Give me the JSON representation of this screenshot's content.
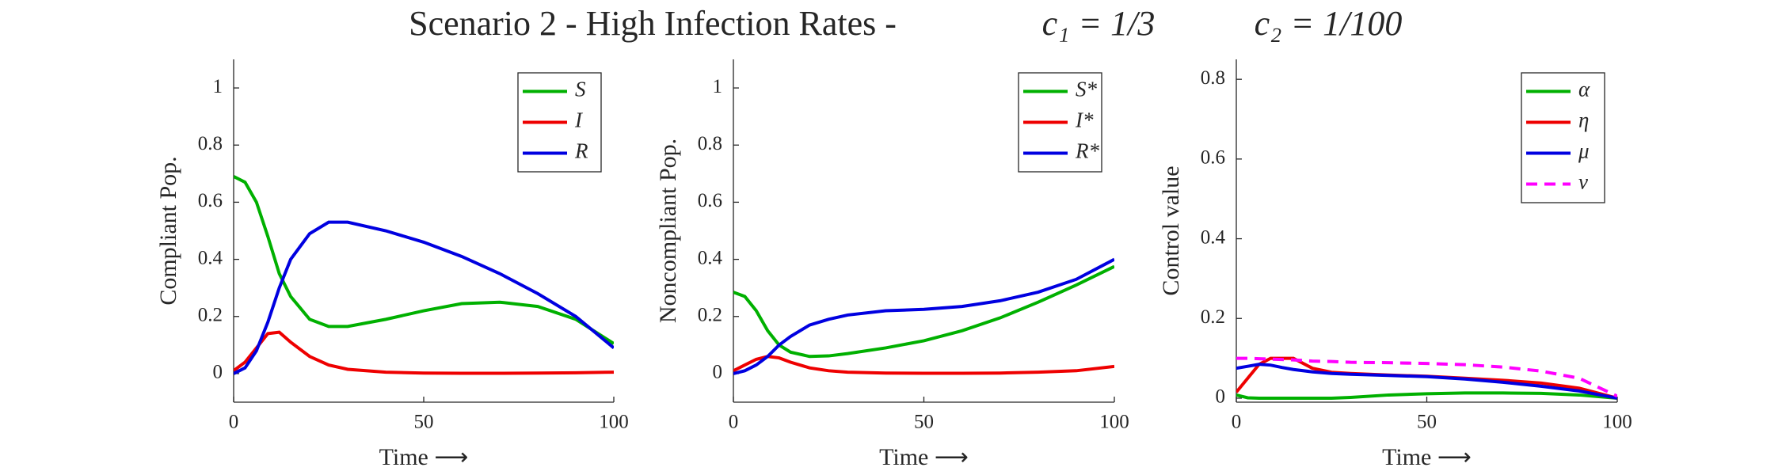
{
  "title": "Scenario 2 - High Infection Rates -",
  "annotations": [
    "c₁ = 1/3",
    "c₂ = 1/100"
  ],
  "chart_data": [
    {
      "type": "line",
      "ylabel": "Compliant Pop.",
      "xlabel": "Time ⟶",
      "x": [
        0,
        3,
        6,
        9,
        12,
        15,
        20,
        25,
        30,
        40,
        50,
        60,
        70,
        80,
        90,
        100
      ],
      "xlim": [
        0,
        100
      ],
      "xticks": [
        0,
        50,
        100
      ],
      "ylim": [
        -0.1,
        1.1
      ],
      "yticks": [
        0,
        0.2,
        0.4,
        0.6,
        0.8,
        1
      ],
      "legend": "upper right",
      "series": [
        {
          "name": "S",
          "color": "#00b000",
          "values": [
            0.69,
            0.67,
            0.6,
            0.48,
            0.35,
            0.27,
            0.19,
            0.165,
            0.165,
            0.19,
            0.22,
            0.245,
            0.25,
            0.235,
            0.19,
            0.105
          ]
        },
        {
          "name": "I",
          "color": "#ee0000",
          "values": [
            0.01,
            0.04,
            0.09,
            0.14,
            0.145,
            0.11,
            0.06,
            0.03,
            0.015,
            0.005,
            0.002,
            0.001,
            0.001,
            0.002,
            0.003,
            0.005
          ]
        },
        {
          "name": "R",
          "color": "#0000e0",
          "values": [
            0,
            0.02,
            0.08,
            0.18,
            0.3,
            0.4,
            0.49,
            0.53,
            0.53,
            0.5,
            0.46,
            0.41,
            0.35,
            0.28,
            0.2,
            0.09
          ]
        }
      ]
    },
    {
      "type": "line",
      "ylabel": "Noncompliant Pop.",
      "xlabel": "Time ⟶",
      "x": [
        0,
        3,
        6,
        9,
        12,
        15,
        20,
        25,
        30,
        40,
        50,
        60,
        70,
        80,
        90,
        100
      ],
      "xlim": [
        0,
        100
      ],
      "xticks": [
        0,
        50,
        100
      ],
      "ylim": [
        -0.1,
        1.1
      ],
      "yticks": [
        0,
        0.2,
        0.4,
        0.6,
        0.8,
        1
      ],
      "legend": "upper right",
      "series": [
        {
          "name": "S*",
          "color": "#00b000",
          "values": [
            0.285,
            0.27,
            0.22,
            0.15,
            0.1,
            0.075,
            0.06,
            0.062,
            0.07,
            0.09,
            0.115,
            0.15,
            0.195,
            0.25,
            0.31,
            0.375
          ]
        },
        {
          "name": "I*",
          "color": "#ee0000",
          "values": [
            0.01,
            0.03,
            0.05,
            0.06,
            0.055,
            0.04,
            0.02,
            0.01,
            0.005,
            0.002,
            0.001,
            0.001,
            0.002,
            0.005,
            0.01,
            0.025
          ]
        },
        {
          "name": "R*",
          "color": "#0000e0",
          "values": [
            0,
            0.01,
            0.03,
            0.06,
            0.1,
            0.13,
            0.17,
            0.19,
            0.205,
            0.22,
            0.225,
            0.235,
            0.255,
            0.285,
            0.33,
            0.4
          ]
        }
      ]
    },
    {
      "type": "line",
      "ylabel": "Control value",
      "xlabel": "Time ⟶",
      "x": [
        0,
        3,
        6,
        9,
        12,
        15,
        20,
        25,
        30,
        40,
        50,
        60,
        70,
        80,
        90,
        100
      ],
      "xlim": [
        0,
        100
      ],
      "xticks": [
        0,
        50,
        100
      ],
      "ylim": [
        -0.01,
        0.85
      ],
      "yticks": [
        0,
        0.2,
        0.4,
        0.6,
        0.8
      ],
      "legend": "upper right",
      "series": [
        {
          "name": "α",
          "color": "#00b000",
          "values": [
            0.008,
            0.001,
            0,
            0,
            0,
            0,
            0,
            0,
            0.002,
            0.008,
            0.011,
            0.013,
            0.013,
            0.012,
            0.008,
            0
          ]
        },
        {
          "name": "η",
          "color": "#ee0000",
          "values": [
            0.015,
            0.05,
            0.085,
            0.1,
            0.1,
            0.1,
            0.075,
            0.065,
            0.062,
            0.058,
            0.055,
            0.05,
            0.045,
            0.038,
            0.025,
            0
          ]
        },
        {
          "name": "μ",
          "color": "#0000e0",
          "values": [
            0.075,
            0.08,
            0.085,
            0.083,
            0.077,
            0.072,
            0.066,
            0.062,
            0.06,
            0.057,
            0.054,
            0.048,
            0.04,
            0.03,
            0.018,
            0
          ]
        },
        {
          "name": "ν",
          "color": "#ff00ff",
          "linestyle": "dashed",
          "values": [
            0.1,
            0.1,
            0.099,
            0.098,
            0.097,
            0.096,
            0.093,
            0.092,
            0.09,
            0.089,
            0.087,
            0.084,
            0.078,
            0.068,
            0.05,
            0.005
          ]
        }
      ]
    }
  ]
}
